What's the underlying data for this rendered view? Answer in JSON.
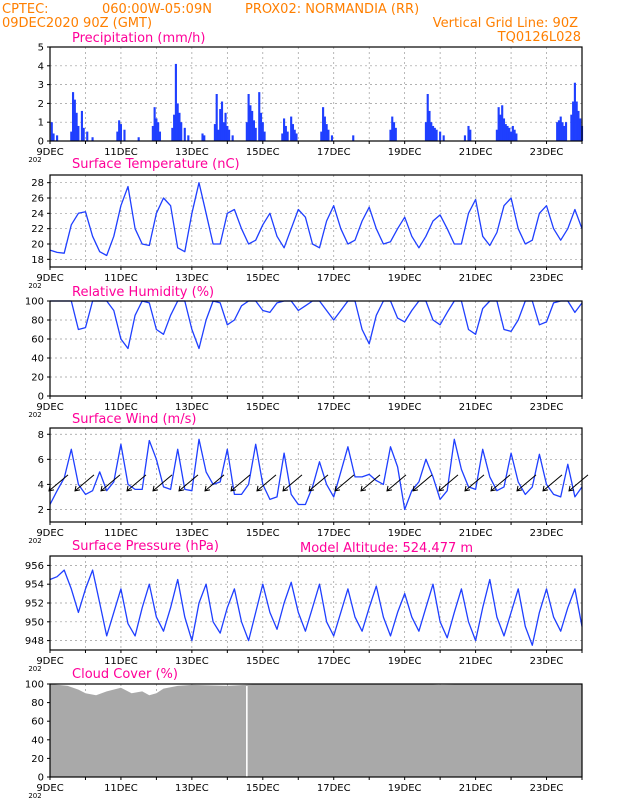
{
  "header": {
    "source": "CPTEC:",
    "coords": "060:00W-05:09N",
    "station": "PROX02: NORMANDIA (RR)",
    "date": "09DEC2020 90Z (GMT)",
    "grid_note": "Vertical Grid Line: 90Z",
    "run_id": "TQ0126L028"
  },
  "model_altitude": "Model Altitude: 524.477 m",
  "year_fragment": "202",
  "colors": {
    "header": "#ff7f00",
    "title": "#ff0099",
    "series": "#1f3fff",
    "cloud": "#a9a9a9"
  },
  "x_ticks": [
    "9DEC",
    "11DEC",
    "13DEC",
    "15DEC",
    "17DEC",
    "19DEC",
    "21DEC",
    "23DEC"
  ],
  "chart_data": [
    {
      "type": "bar",
      "title": "Precipitation (mm/h)",
      "x_range_days": [
        9,
        24
      ],
      "ylim": [
        0,
        5
      ],
      "y_ticks": [
        "0",
        "1",
        "2",
        "3",
        "4",
        "5"
      ],
      "grid": true,
      "events": [
        {
          "day": 9.05,
          "value": 1.0
        },
        {
          "day": 9.1,
          "value": 0.4
        },
        {
          "day": 9.2,
          "value": 0.3
        },
        {
          "day": 9.6,
          "value": 0.5
        },
        {
          "day": 9.65,
          "value": 2.6
        },
        {
          "day": 9.7,
          "value": 2.2
        },
        {
          "day": 9.75,
          "value": 1.5
        },
        {
          "day": 9.8,
          "value": 0.8
        },
        {
          "day": 9.9,
          "value": 1.6
        },
        {
          "day": 9.95,
          "value": 0.7
        },
        {
          "day": 10.05,
          "value": 0.5
        },
        {
          "day": 10.2,
          "value": 0.2
        },
        {
          "day": 10.9,
          "value": 0.5
        },
        {
          "day": 10.95,
          "value": 1.1
        },
        {
          "day": 11.0,
          "value": 0.9
        },
        {
          "day": 11.1,
          "value": 0.6
        },
        {
          "day": 11.5,
          "value": 0.2
        },
        {
          "day": 11.9,
          "value": 0.8
        },
        {
          "day": 11.95,
          "value": 1.8
        },
        {
          "day": 12.0,
          "value": 1.2
        },
        {
          "day": 12.05,
          "value": 1.0
        },
        {
          "day": 12.1,
          "value": 0.5
        },
        {
          "day": 12.45,
          "value": 0.7
        },
        {
          "day": 12.5,
          "value": 1.4
        },
        {
          "day": 12.55,
          "value": 4.1
        },
        {
          "day": 12.6,
          "value": 2.0
        },
        {
          "day": 12.65,
          "value": 1.5
        },
        {
          "day": 12.7,
          "value": 1.0
        },
        {
          "day": 12.8,
          "value": 0.7
        },
        {
          "day": 12.9,
          "value": 0.3
        },
        {
          "day": 13.3,
          "value": 0.4
        },
        {
          "day": 13.35,
          "value": 0.3
        },
        {
          "day": 13.65,
          "value": 0.9
        },
        {
          "day": 13.7,
          "value": 2.5
        },
        {
          "day": 13.75,
          "value": 0.6
        },
        {
          "day": 13.8,
          "value": 1.7
        },
        {
          "day": 13.85,
          "value": 2.1
        },
        {
          "day": 13.9,
          "value": 1.0
        },
        {
          "day": 13.95,
          "value": 1.5
        },
        {
          "day": 14.0,
          "value": 0.8
        },
        {
          "day": 14.05,
          "value": 0.6
        },
        {
          "day": 14.15,
          "value": 0.3
        },
        {
          "day": 14.55,
          "value": 1.0
        },
        {
          "day": 14.6,
          "value": 2.5
        },
        {
          "day": 14.65,
          "value": 1.9
        },
        {
          "day": 14.7,
          "value": 1.6
        },
        {
          "day": 14.75,
          "value": 1.1
        },
        {
          "day": 14.8,
          "value": 0.7
        },
        {
          "day": 14.9,
          "value": 2.6
        },
        {
          "day": 14.95,
          "value": 1.5
        },
        {
          "day": 15.0,
          "value": 1.0
        },
        {
          "day": 15.05,
          "value": 0.5
        },
        {
          "day": 15.55,
          "value": 0.4
        },
        {
          "day": 15.6,
          "value": 1.2
        },
        {
          "day": 15.65,
          "value": 0.8
        },
        {
          "day": 15.7,
          "value": 0.5
        },
        {
          "day": 15.8,
          "value": 1.3
        },
        {
          "day": 15.85,
          "value": 0.9
        },
        {
          "day": 15.9,
          "value": 0.6
        },
        {
          "day": 15.95,
          "value": 0.4
        },
        {
          "day": 16.65,
          "value": 0.5
        },
        {
          "day": 16.7,
          "value": 1.8
        },
        {
          "day": 16.75,
          "value": 1.3
        },
        {
          "day": 16.8,
          "value": 0.9
        },
        {
          "day": 16.85,
          "value": 0.6
        },
        {
          "day": 16.95,
          "value": 0.3
        },
        {
          "day": 17.55,
          "value": 0.3
        },
        {
          "day": 18.6,
          "value": 0.6
        },
        {
          "day": 18.65,
          "value": 1.3
        },
        {
          "day": 18.7,
          "value": 1.0
        },
        {
          "day": 18.75,
          "value": 0.7
        },
        {
          "day": 19.6,
          "value": 1.0
        },
        {
          "day": 19.65,
          "value": 2.5
        },
        {
          "day": 19.7,
          "value": 1.6
        },
        {
          "day": 19.75,
          "value": 1.0
        },
        {
          "day": 19.8,
          "value": 0.8
        },
        {
          "day": 19.85,
          "value": 0.7
        },
        {
          "day": 19.9,
          "value": 0.6
        },
        {
          "day": 20.0,
          "value": 0.5
        },
        {
          "day": 20.1,
          "value": 0.3
        },
        {
          "day": 20.7,
          "value": 0.3
        },
        {
          "day": 20.8,
          "value": 0.8
        },
        {
          "day": 20.85,
          "value": 0.6
        },
        {
          "day": 21.6,
          "value": 0.6
        },
        {
          "day": 21.65,
          "value": 1.8
        },
        {
          "day": 21.7,
          "value": 1.4
        },
        {
          "day": 21.75,
          "value": 1.9
        },
        {
          "day": 21.8,
          "value": 1.2
        },
        {
          "day": 21.85,
          "value": 0.9
        },
        {
          "day": 21.9,
          "value": 0.8
        },
        {
          "day": 21.95,
          "value": 0.7
        },
        {
          "day": 22.0,
          "value": 0.5
        },
        {
          "day": 22.05,
          "value": 0.8
        },
        {
          "day": 22.1,
          "value": 0.6
        },
        {
          "day": 22.15,
          "value": 0.4
        },
        {
          "day": 23.3,
          "value": 1.0
        },
        {
          "day": 23.35,
          "value": 1.1
        },
        {
          "day": 23.4,
          "value": 1.3
        },
        {
          "day": 23.45,
          "value": 1.0
        },
        {
          "day": 23.5,
          "value": 0.8
        },
        {
          "day": 23.55,
          "value": 1.0
        },
        {
          "day": 23.7,
          "value": 1.4
        },
        {
          "day": 23.75,
          "value": 2.1
        },
        {
          "day": 23.8,
          "value": 3.1
        },
        {
          "day": 23.85,
          "value": 2.1
        },
        {
          "day": 23.9,
          "value": 1.6
        },
        {
          "day": 23.95,
          "value": 1.2
        },
        {
          "day": 24.0,
          "value": 0.8
        }
      ]
    },
    {
      "type": "line",
      "title": "Surface Temperature (nC)",
      "x_range_days": [
        9,
        24
      ],
      "ylim": [
        17,
        29
      ],
      "y_ticks": [
        "18",
        "20",
        "22",
        "24",
        "26",
        "28"
      ],
      "grid": true,
      "x": [
        9.0,
        9.2,
        9.4,
        9.6,
        9.8,
        10.0,
        10.2,
        10.4,
        10.6,
        10.8,
        11.0,
        11.2,
        11.4,
        11.6,
        11.8,
        12.0,
        12.2,
        12.4,
        12.6,
        12.8,
        13.0,
        13.2,
        13.4,
        13.6,
        13.8,
        14.0,
        14.2,
        14.4,
        14.6,
        14.8,
        15.0,
        15.2,
        15.4,
        15.6,
        15.8,
        16.0,
        16.2,
        16.4,
        16.6,
        16.8,
        17.0,
        17.2,
        17.4,
        17.6,
        17.8,
        18.0,
        18.2,
        18.4,
        18.6,
        18.8,
        19.0,
        19.2,
        19.4,
        19.6,
        19.8,
        20.0,
        20.2,
        20.4,
        20.6,
        20.8,
        21.0,
        21.2,
        21.4,
        21.6,
        21.8,
        22.0,
        22.2,
        22.4,
        22.6,
        22.8,
        23.0,
        23.2,
        23.4,
        23.6,
        23.8,
        24.0
      ],
      "values": [
        19.2,
        18.9,
        18.8,
        22.5,
        24.0,
        24.2,
        21.0,
        19.0,
        18.5,
        21.0,
        25.0,
        27.5,
        22.0,
        20.0,
        19.8,
        24.0,
        26.0,
        25.0,
        19.5,
        19.0,
        24.0,
        28.0,
        24.0,
        20.0,
        20.0,
        24.0,
        24.5,
        22.0,
        20.0,
        20.5,
        22.5,
        24.0,
        21.0,
        19.5,
        22.0,
        24.5,
        23.5,
        20.0,
        19.5,
        23.0,
        25.0,
        22.0,
        20.0,
        20.5,
        23.0,
        24.8,
        22.0,
        20.0,
        20.3,
        22.0,
        23.5,
        21.0,
        19.5,
        21.0,
        23.0,
        23.8,
        22.0,
        20.0,
        20.0,
        24.0,
        25.8,
        21.0,
        19.8,
        21.5,
        25.0,
        26.0,
        22.0,
        20.0,
        20.5,
        24.0,
        25.0,
        22.0,
        20.5,
        22.0,
        24.5,
        22.0
      ]
    },
    {
      "type": "line",
      "title": "Relative Humidity (%)",
      "x_range_days": [
        9,
        24
      ],
      "ylim": [
        0,
        100
      ],
      "y_ticks": [
        "0",
        "20",
        "40",
        "60",
        "80",
        "100"
      ],
      "grid": true,
      "x": [
        9.0,
        9.2,
        9.4,
        9.6,
        9.8,
        10.0,
        10.2,
        10.4,
        10.6,
        10.8,
        11.0,
        11.2,
        11.4,
        11.6,
        11.8,
        12.0,
        12.2,
        12.4,
        12.6,
        12.8,
        13.0,
        13.2,
        13.4,
        13.6,
        13.8,
        14.0,
        14.2,
        14.4,
        14.6,
        14.8,
        15.0,
        15.2,
        15.4,
        15.6,
        15.8,
        16.0,
        16.2,
        16.4,
        16.6,
        16.8,
        17.0,
        17.2,
        17.4,
        17.6,
        17.8,
        18.0,
        18.2,
        18.4,
        18.6,
        18.8,
        19.0,
        19.2,
        19.4,
        19.6,
        19.8,
        20.0,
        20.2,
        20.4,
        20.6,
        20.8,
        21.0,
        21.2,
        21.4,
        21.6,
        21.8,
        22.0,
        22.2,
        22.4,
        22.6,
        22.8,
        23.0,
        23.2,
        23.4,
        23.6,
        23.8,
        24.0
      ],
      "values": [
        100,
        100,
        100,
        100,
        70,
        72,
        100,
        100,
        100,
        90,
        60,
        50,
        85,
        100,
        98,
        70,
        65,
        85,
        100,
        100,
        70,
        50,
        80,
        100,
        98,
        75,
        80,
        95,
        100,
        100,
        90,
        88,
        98,
        100,
        100,
        90,
        95,
        100,
        100,
        90,
        80,
        90,
        100,
        100,
        70,
        55,
        85,
        100,
        100,
        82,
        78,
        90,
        100,
        100,
        80,
        75,
        88,
        100,
        100,
        70,
        65,
        92,
        100,
        100,
        70,
        68,
        80,
        100,
        100,
        75,
        78,
        98,
        100,
        100,
        88,
        98
      ]
    },
    {
      "type": "line",
      "title": "Surface Wind (m/s)",
      "x_range_days": [
        9,
        24
      ],
      "ylim": [
        1,
        8.5
      ],
      "y_ticks": [
        "2",
        "4",
        "6",
        "8"
      ],
      "grid": true,
      "x": [
        9.0,
        9.2,
        9.4,
        9.6,
        9.8,
        10.0,
        10.2,
        10.4,
        10.6,
        10.8,
        11.0,
        11.2,
        11.4,
        11.6,
        11.8,
        12.0,
        12.2,
        12.4,
        12.6,
        12.8,
        13.0,
        13.2,
        13.4,
        13.6,
        13.8,
        14.0,
        14.2,
        14.4,
        14.6,
        14.8,
        15.0,
        15.2,
        15.4,
        15.6,
        15.8,
        16.0,
        16.2,
        16.4,
        16.6,
        16.8,
        17.0,
        17.2,
        17.4,
        17.6,
        17.8,
        18.0,
        18.2,
        18.4,
        18.6,
        18.8,
        19.0,
        19.2,
        19.4,
        19.6,
        19.8,
        20.0,
        20.2,
        20.4,
        20.6,
        20.8,
        21.0,
        21.2,
        21.4,
        21.6,
        21.8,
        22.0,
        22.2,
        22.4,
        22.6,
        22.8,
        23.0,
        23.2,
        23.4,
        23.6,
        23.8,
        24.0
      ],
      "values": [
        2.4,
        3.5,
        4.5,
        6.8,
        4.0,
        3.2,
        3.5,
        5.0,
        3.5,
        4.2,
        7.2,
        4.0,
        3.6,
        3.6,
        7.5,
        6.0,
        3.8,
        3.6,
        6.8,
        3.6,
        3.5,
        7.6,
        5.0,
        4.0,
        4.2,
        6.8,
        3.2,
        3.2,
        4.0,
        7.2,
        4.0,
        2.8,
        3.0,
        6.5,
        3.2,
        2.4,
        2.4,
        3.8,
        5.8,
        4.0,
        3.0,
        5.0,
        7.0,
        4.6,
        4.6,
        4.8,
        4.3,
        4.0,
        7.0,
        5.4,
        2.0,
        3.5,
        4.2,
        6.0,
        4.6,
        2.8,
        3.5,
        7.6,
        5.2,
        3.8,
        3.6,
        6.8,
        4.6,
        3.5,
        3.8,
        6.5,
        4.2,
        3.2,
        3.8,
        6.4,
        4.0,
        3.2,
        3.0,
        5.6,
        3.0,
        3.8
      ],
      "vectors_count": 21
    },
    {
      "type": "line",
      "title": "Surface Pressure (hPa)",
      "x_range_days": [
        9,
        24
      ],
      "ylim": [
        947,
        957
      ],
      "y_ticks": [
        "948",
        "950",
        "952",
        "954",
        "956"
      ],
      "grid": true,
      "x": [
        9.0,
        9.2,
        9.4,
        9.6,
        9.8,
        10.0,
        10.2,
        10.4,
        10.6,
        10.8,
        11.0,
        11.2,
        11.4,
        11.6,
        11.8,
        12.0,
        12.2,
        12.4,
        12.6,
        12.8,
        13.0,
        13.2,
        13.4,
        13.6,
        13.8,
        14.0,
        14.2,
        14.4,
        14.6,
        14.8,
        15.0,
        15.2,
        15.4,
        15.6,
        15.8,
        16.0,
        16.2,
        16.4,
        16.6,
        16.8,
        17.0,
        17.2,
        17.4,
        17.6,
        17.8,
        18.0,
        18.2,
        18.4,
        18.6,
        18.8,
        19.0,
        19.2,
        19.4,
        19.6,
        19.8,
        20.0,
        20.2,
        20.4,
        20.6,
        20.8,
        21.0,
        21.2,
        21.4,
        21.6,
        21.8,
        22.0,
        22.2,
        22.4,
        22.6,
        22.8,
        23.0,
        23.2,
        23.4,
        23.6,
        23.8,
        24.0
      ],
      "values": [
        954.5,
        954.8,
        955.5,
        953.5,
        951.0,
        953.5,
        955.5,
        952.0,
        948.5,
        951.0,
        953.5,
        949.8,
        948.5,
        951.5,
        954.0,
        950.5,
        949.0,
        951.5,
        954.5,
        950.5,
        948.0,
        952.0,
        954.0,
        950.0,
        948.8,
        951.5,
        953.5,
        950.0,
        948.0,
        951.0,
        954.0,
        951.0,
        949.2,
        952.0,
        954.2,
        951.0,
        949.0,
        951.5,
        954.0,
        950.0,
        948.5,
        951.0,
        953.5,
        950.5,
        949.0,
        951.5,
        953.8,
        950.5,
        948.5,
        951.0,
        953.0,
        950.5,
        949.0,
        951.5,
        954.0,
        950.0,
        948.3,
        951.0,
        953.5,
        950.0,
        948.0,
        951.5,
        954.5,
        950.5,
        948.5,
        951.0,
        953.5,
        949.5,
        947.5,
        951.0,
        953.5,
        950.5,
        949.0,
        951.5,
        953.5,
        949.5
      ]
    },
    {
      "type": "area",
      "title": "Cloud Cover (%)",
      "x_range_days": [
        9,
        24
      ],
      "ylim": [
        0,
        100
      ],
      "y_ticks": [
        "0",
        "20",
        "40",
        "60",
        "80",
        "100"
      ],
      "grid": true,
      "x": [
        9.0,
        9.5,
        9.8,
        10.0,
        10.3,
        10.6,
        11.0,
        11.3,
        11.6,
        11.8,
        12.0,
        12.2,
        12.6,
        13.0,
        14.0,
        14.5,
        15.0,
        16.0,
        17.0,
        19.5,
        20.0,
        21.0,
        22.0,
        23.0,
        24.0
      ],
      "values": [
        100,
        98,
        94,
        90,
        88,
        92,
        96,
        90,
        92,
        88,
        90,
        95,
        98,
        99,
        98,
        99,
        100,
        100,
        100,
        100,
        99,
        100,
        100,
        100,
        100
      ],
      "gap_day": 14.55
    }
  ]
}
